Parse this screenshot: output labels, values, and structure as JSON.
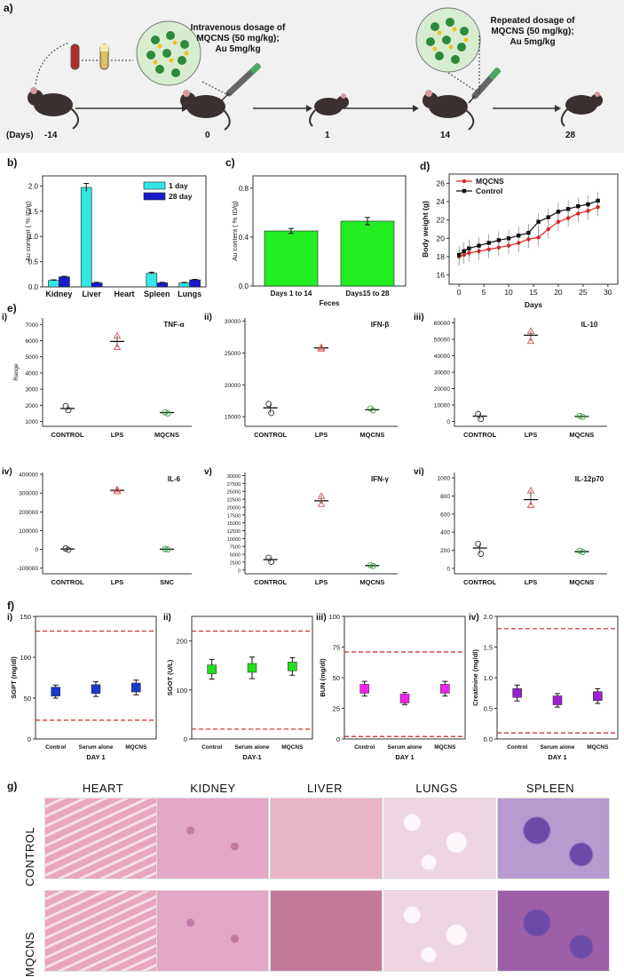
{
  "panels": {
    "a": "a)",
    "b": "b)",
    "c": "c)",
    "d": "d)",
    "e": "e)",
    "f": "f)",
    "g": "g)"
  },
  "timeline": {
    "days_label": "(Days)",
    "days": [
      "-14",
      "0",
      "1",
      "14",
      "28"
    ],
    "dose1": [
      "Intravenous dosage of",
      "MQCNS (50 mg/kg);",
      "Au 5mg/kg"
    ],
    "dose2": [
      "Repeated dosage of",
      "MQCNS (50 mg/kg);",
      "Au 5mg/kg"
    ]
  },
  "chart_b": {
    "type": "bar",
    "ylabel": "Au content ( % ID/g)",
    "categories": [
      "Kidney",
      "Liver",
      "Heart",
      "Spleen",
      "Lungs"
    ],
    "yticks": [
      "0.0",
      "0.5",
      "1.0",
      "1.5",
      "2.0"
    ],
    "ylim": [
      0,
      2.2
    ],
    "series": [
      {
        "name": "1 day",
        "color": "#33e6e6",
        "values": [
          0.13,
          1.97,
          0.0,
          0.27,
          0.08
        ],
        "err": [
          0.01,
          0.08,
          0,
          0.02,
          0.01
        ]
      },
      {
        "name": "28 day",
        "color": "#1a1acc",
        "values": [
          0.2,
          0.08,
          0.0,
          0.08,
          0.14
        ],
        "err": [
          0.01,
          0.01,
          0,
          0.01,
          0.01
        ]
      }
    ]
  },
  "chart_c": {
    "type": "bar",
    "ylabel": "Au content ( % ID/g)",
    "xlabel": "Feces",
    "categories": [
      "Days 1 to 14",
      "Days15 to 28"
    ],
    "yticks": [
      "0.0",
      "0.4",
      "0.8"
    ],
    "ylim": [
      0,
      0.9
    ],
    "values": [
      0.45,
      0.53
    ],
    "err": [
      0.02,
      0.03
    ],
    "color": "#22ee22"
  },
  "chart_d": {
    "type": "line",
    "ylabel": "Body weight (g)",
    "xlabel": "Days",
    "xticks": [
      "0",
      "5",
      "10",
      "15",
      "20",
      "25",
      "30"
    ],
    "yticks": [
      "16",
      "18",
      "20",
      "22",
      "24",
      "26"
    ],
    "xlim": [
      -2,
      32
    ],
    "ylim": [
      15,
      27
    ],
    "x": [
      0,
      1,
      2,
      4,
      6,
      8,
      10,
      12,
      14,
      16,
      18,
      20,
      22,
      24,
      26,
      28
    ],
    "series": [
      {
        "name": "MQCNS",
        "color": "#dd2222",
        "values": [
          18.0,
          18.2,
          18.4,
          18.6,
          18.8,
          19.0,
          19.2,
          19.5,
          19.9,
          20.1,
          21.0,
          21.8,
          22.2,
          22.7,
          23.0,
          23.4
        ]
      },
      {
        "name": "Control",
        "color": "#111111",
        "values": [
          18.2,
          18.6,
          18.9,
          19.2,
          19.5,
          19.8,
          20.0,
          20.3,
          20.6,
          21.8,
          22.3,
          22.9,
          23.2,
          23.5,
          23.7,
          24.1
        ]
      }
    ]
  },
  "chart_e": [
    {
      "label": "i)",
      "title": "TNF-α",
      "ylabel": "Range",
      "categories": [
        "CONTROL",
        "LPS",
        "MQCNS"
      ],
      "yticks": [
        "1000",
        "2000",
        "3000",
        "4000",
        "5000",
        "6000",
        "7000"
      ],
      "ylim": [
        700,
        7400
      ],
      "means": [
        1800,
        5950,
        1550
      ],
      "points": [
        [
          1700,
          1950
        ],
        [
          5600,
          6300
        ],
        [
          1500,
          1560
        ]
      ]
    },
    {
      "label": "ii)",
      "title": "IFN-β",
      "ylabel": "",
      "categories": [
        "CONTROL",
        "LPS",
        "MQCNS"
      ],
      "yticks": [
        "15000",
        "20000",
        "25000",
        "30000"
      ],
      "ylim": [
        13500,
        30500
      ],
      "means": [
        16400,
        25800,
        16100
      ],
      "points": [
        [
          15600,
          17000
        ],
        [
          25700,
          25900
        ],
        [
          16000,
          16300
        ]
      ]
    },
    {
      "label": "iii)",
      "title": "IL-10",
      "ylabel": "",
      "categories": [
        "CONTROL",
        "LPS",
        "MQCNS"
      ],
      "yticks": [
        "0",
        "10000",
        "20000",
        "30000",
        "40000",
        "50000",
        "60000"
      ],
      "ylim": [
        -3000,
        63000
      ],
      "means": [
        3200,
        52500,
        3000
      ],
      "points": [
        [
          1500,
          4500
        ],
        [
          49000,
          55000
        ],
        [
          2800,
          3300
        ]
      ]
    },
    {
      "label": "iv)",
      "title": "IL-6",
      "ylabel": "",
      "categories": [
        "CONTROL",
        "LPS",
        "SNC"
      ],
      "yticks": [
        "-100000",
        "0",
        "100000",
        "200000",
        "300000",
        "400000"
      ],
      "ylim": [
        -130000,
        410000
      ],
      "means": [
        2000,
        315000,
        1000
      ],
      "points": [
        [
          -2000,
          5000
        ],
        [
          310000,
          320000
        ],
        [
          0,
          2000
        ]
      ]
    },
    {
      "label": "v)",
      "title": "IFN-γ",
      "ylabel": "",
      "categories": [
        "CONTROL",
        "LPS",
        "MQCNS"
      ],
      "yticks": [
        "0",
        "2500",
        "5000",
        "7500",
        "10000",
        "12500",
        "15000",
        "17500",
        "20000",
        "22500",
        "25000",
        "27500",
        "30000"
      ],
      "ylim": [
        -1200,
        31000
      ],
      "means": [
        3300,
        22000,
        1400
      ],
      "points": [
        [
          2600,
          3900
        ],
        [
          21000,
          23500
        ],
        [
          1300,
          1500
        ]
      ]
    },
    {
      "label": "vi)",
      "title": "IL-12p70",
      "ylabel": "",
      "categories": [
        "CONTROL",
        "LPS",
        "MQCNS"
      ],
      "yticks": [
        "0",
        "200",
        "400",
        "600",
        "800",
        "1000"
      ],
      "ylim": [
        -60,
        1060
      ],
      "means": [
        225,
        760,
        185
      ],
      "points": [
        [
          160,
          270
        ],
        [
          700,
          860
        ],
        [
          180,
          195
        ]
      ]
    }
  ],
  "chart_f": [
    {
      "label": "i)",
      "ylabel": "SGPT (mg/dl)",
      "xlabel": "DAY 1",
      "categories": [
        "Control",
        "Serum alone",
        "MQCNS"
      ],
      "yticks": [
        "0",
        "50",
        "100",
        "150"
      ],
      "ylim": [
        0,
        150
      ],
      "values": [
        58,
        61,
        63
      ],
      "err": [
        8,
        9,
        9
      ],
      "ref": [
        23,
        132
      ],
      "color": "#1a3acc"
    },
    {
      "label": "ii)",
      "ylabel": "SGOT (U/L)",
      "xlabel": "DAY-1",
      "categories": [
        "Control",
        "Serum alone",
        "MQCNS"
      ],
      "yticks": [
        "0",
        "100",
        "200"
      ],
      "ylim": [
        0,
        250
      ],
      "values": [
        142,
        145,
        148
      ],
      "err": [
        20,
        22,
        18
      ],
      "ref": [
        20,
        220
      ],
      "color": "#22dd22"
    },
    {
      "label": "iii)",
      "ylabel": "BUN (mg/dl)",
      "xlabel": "DAY 1",
      "categories": [
        "Control",
        "Serum alone",
        "MQCNS"
      ],
      "yticks": [
        "0",
        "25",
        "50",
        "75",
        "100"
      ],
      "ylim": [
        0,
        100
      ],
      "values": [
        41,
        33,
        41
      ],
      "err": [
        6,
        5,
        6
      ],
      "ref": [
        2,
        71
      ],
      "color": "#ee22ee"
    },
    {
      "label": "iv)",
      "ylabel": "Creatinine (mg/dl)",
      "xlabel": "DAY 1",
      "categories": [
        "Control",
        "Serum alone",
        "MQCNS"
      ],
      "yticks": [
        "0.0",
        "0.5",
        "1.0",
        "1.5",
        "2.0"
      ],
      "ylim": [
        0,
        2.0
      ],
      "values": [
        0.75,
        0.63,
        0.7
      ],
      "err": [
        0.13,
        0.11,
        0.12
      ],
      "ref": [
        0.1,
        1.8
      ],
      "color": "#9922cc"
    }
  ],
  "histology": {
    "columns": [
      "HEART",
      "KIDNEY",
      "LIVER",
      "LUNGS",
      "SPLEEN"
    ],
    "rows": [
      "CONTROL",
      "MQCNS"
    ],
    "tissue_colors": {
      "heart": "#e9a6bd",
      "kidney": "#e3a8c6",
      "liver": "#e8b4c8",
      "lungs": "#efd5e2",
      "spleen": "#b79ad0",
      "liver_mqcns": "#c57a9a",
      "spleen_mqcns": "#9c5fa8"
    }
  }
}
